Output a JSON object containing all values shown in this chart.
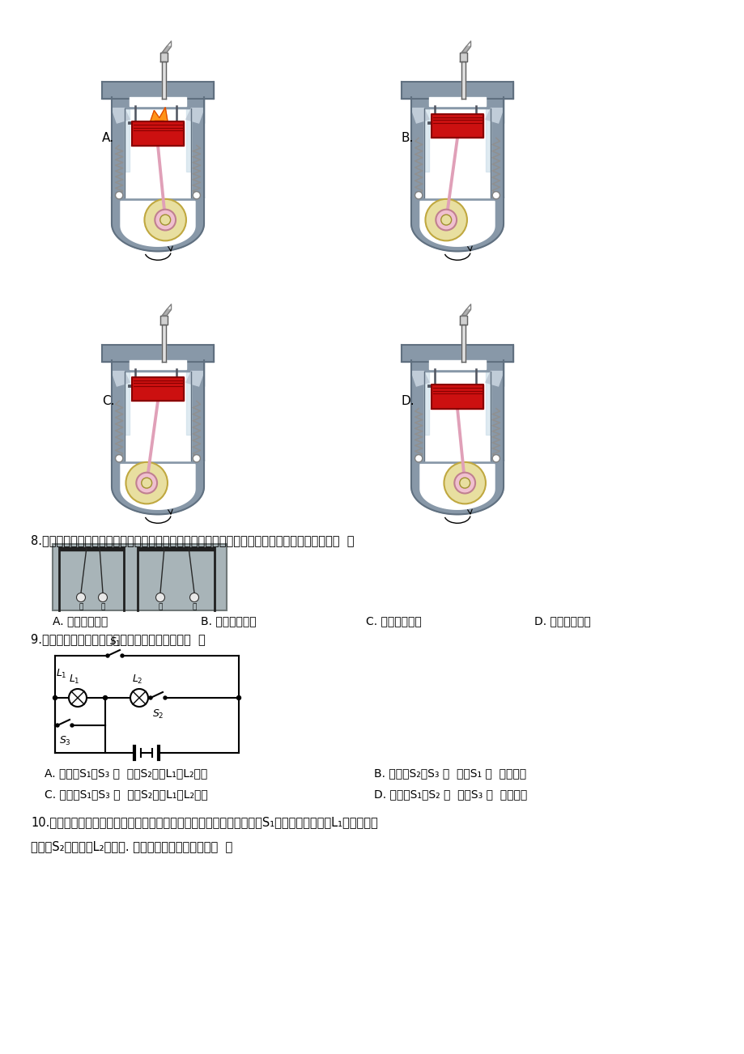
{
  "bg_color": "#ffffff",
  "q8_text": "8.甲、乙、丙三个轻质小球用绝缘细绳悬挂，相互作用情况如下列图，如果丙带正电荷，那么甲（  ）",
  "q8_A": "A. 一定带正电荷",
  "q8_B": "B. 一定带负电荷",
  "q8_C": "C. 可能带负电荷",
  "q8_D": "D. 可能带正电荷",
  "q9_text": "9.如以下列图所示电路，以下说法正确的选项是（  ）",
  "q9_A": "A. 当闭合S₁、S₃ ，  断开S₂时，L₁、L₂并联",
  "q9_B": "B. 当闭合S₂、S₃ ，  断开S₁ ，  两灯都亮",
  "q9_C": "C. 当闭合S₁、S₃ ，  断开S₂时，L₁、L₂串联",
  "q9_D": "D. 当闭合S₁、S₂ ，  断开S₃ ，  两灯都亮",
  "q10_line1": "10.如下列图，汽车装有日间行车灯可以提高行车平安，当汽车启动时，S₁闭合，日间行车灯L₁立即亮起；",
  "q10_line2": "再闭合S₂车前大灯L₂也亮起. 符合这一情况的电路图是（  ）",
  "engine_gray": "#8898a8",
  "engine_gray2": "#9eadb8",
  "engine_gray_dark": "#607080",
  "engine_inner_bg": "#dce8f0",
  "piston_red": "#cc1010",
  "piston_dark": "#880000",
  "crank_yellow": "#e8dfa0",
  "crank_pink": "#e0a0b8",
  "spring_gray": "#909090"
}
